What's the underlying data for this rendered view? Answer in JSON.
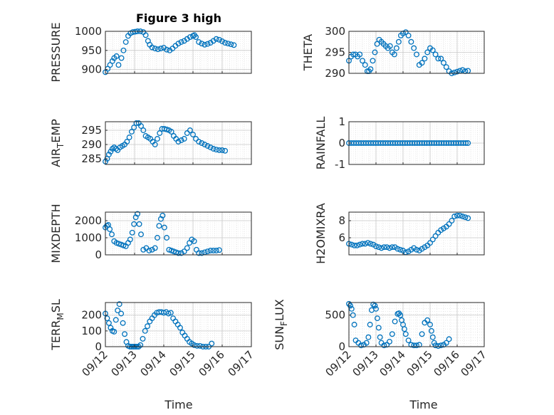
{
  "figure_title": "Figure 3 high",
  "x_time_label": "Time",
  "x_tick_labels": [
    "09/12",
    "09/13",
    "09/14",
    "09/15",
    "09/16",
    "09/17"
  ],
  "marker_color": "#0072BD",
  "chart_data": [
    {
      "type": "scatter",
      "title": "Figure 3 high",
      "ylabel": "PRESSURE",
      "ylim": [
        890,
        1000
      ],
      "yticks": [
        900,
        950,
        1000
      ],
      "xlim": [
        0,
        5
      ],
      "grid": true,
      "x": [
        0.0,
        0.08,
        0.16,
        0.24,
        0.3,
        0.38,
        0.45,
        0.55,
        0.62,
        0.7,
        0.78,
        0.86,
        0.94,
        1.02,
        1.1,
        1.2,
        1.3,
        1.38,
        1.46,
        1.52,
        1.6,
        1.7,
        1.8,
        1.9,
        2.0,
        2.1,
        2.2,
        2.3,
        2.4,
        2.5,
        2.6,
        2.7,
        2.8,
        2.9,
        3.0,
        3.05,
        3.1,
        3.2,
        3.3,
        3.4,
        3.5,
        3.6,
        3.7,
        3.8,
        3.9,
        4.0,
        4.1,
        4.2,
        4.3,
        4.4
      ],
      "y": [
        893,
        902,
        912,
        922,
        930,
        935,
        912,
        930,
        950,
        972,
        988,
        995,
        998,
        999,
        1000,
        1000,
        998,
        990,
        975,
        965,
        958,
        955,
        953,
        955,
        957,
        952,
        950,
        955,
        962,
        968,
        972,
        975,
        980,
        985,
        988,
        990,
        985,
        972,
        968,
        965,
        967,
        970,
        975,
        980,
        978,
        974,
        970,
        968,
        966,
        964
      ]
    },
    {
      "type": "scatter",
      "ylabel": "THETA",
      "ylim": [
        290,
        300
      ],
      "yticks": [
        290,
        295,
        300
      ],
      "xlim": [
        0,
        5
      ],
      "grid": true,
      "x": [
        0.0,
        0.08,
        0.16,
        0.24,
        0.32,
        0.4,
        0.5,
        0.6,
        0.68,
        0.74,
        0.8,
        0.88,
        0.96,
        1.04,
        1.12,
        1.2,
        1.28,
        1.36,
        1.44,
        1.52,
        1.6,
        1.68,
        1.76,
        1.84,
        1.92,
        2.0,
        2.1,
        2.2,
        2.3,
        2.4,
        2.5,
        2.6,
        2.7,
        2.8,
        2.9,
        3.0,
        3.1,
        3.2,
        3.3,
        3.4,
        3.5,
        3.6,
        3.7,
        3.8,
        3.9,
        4.0,
        4.1,
        4.2,
        4.3,
        4.4
      ],
      "y": [
        293,
        294,
        294.5,
        294.5,
        294,
        294.5,
        293,
        292,
        290.5,
        290.5,
        291,
        293,
        295,
        297,
        298,
        297.5,
        297,
        296.5,
        296,
        296.5,
        295,
        294.5,
        296,
        297.5,
        299,
        299.5,
        299.8,
        299,
        297.5,
        296,
        294.5,
        292,
        292.5,
        293.5,
        295,
        296,
        295.5,
        294.5,
        293.5,
        293.5,
        292.5,
        291.5,
        290.5,
        290,
        290.2,
        290.4,
        290.6,
        290.8,
        290.5,
        290.6
      ]
    },
    {
      "type": "scatter",
      "ylabel": "AIR_TEMP",
      "ylim": [
        283,
        298
      ],
      "yticks": [
        285,
        290,
        295
      ],
      "xlim": [
        0,
        5
      ],
      "grid": true,
      "x": [
        0.0,
        0.06,
        0.12,
        0.18,
        0.24,
        0.3,
        0.36,
        0.42,
        0.5,
        0.58,
        0.66,
        0.74,
        0.82,
        0.9,
        0.98,
        1.06,
        1.14,
        1.22,
        1.3,
        1.38,
        1.46,
        1.54,
        1.62,
        1.7,
        1.78,
        1.86,
        1.94,
        2.02,
        2.1,
        2.18,
        2.26,
        2.34,
        2.42,
        2.5,
        2.6,
        2.7,
        2.8,
        2.9,
        3.0,
        3.1,
        3.2,
        3.3,
        3.4,
        3.5,
        3.6,
        3.7,
        3.8,
        3.9,
        4.0,
        4.1
      ],
      "y": [
        284,
        285,
        286.5,
        287.5,
        288.5,
        289,
        288.5,
        288,
        289,
        289.5,
        290,
        291,
        292.5,
        294.5,
        296,
        297.5,
        297.5,
        296.5,
        295,
        293,
        292.5,
        292,
        291,
        290,
        292,
        294,
        295.5,
        295.5,
        295.3,
        295,
        294.5,
        293,
        292,
        291,
        291.5,
        292,
        294,
        295,
        293.5,
        292,
        291,
        290.5,
        290,
        289.5,
        289,
        288.5,
        288.2,
        288,
        288,
        287.8
      ]
    },
    {
      "type": "scatter",
      "ylabel": "RAINFALL",
      "ylim": [
        -1,
        1
      ],
      "yticks": [
        -1,
        0,
        1
      ],
      "xlim": [
        0,
        5
      ],
      "grid": true,
      "x": [
        0.0,
        0.09,
        0.18,
        0.27,
        0.36,
        0.45,
        0.54,
        0.63,
        0.72,
        0.81,
        0.9,
        0.99,
        1.08,
        1.17,
        1.26,
        1.35,
        1.44,
        1.53,
        1.62,
        1.71,
        1.8,
        1.89,
        1.98,
        2.07,
        2.16,
        2.25,
        2.34,
        2.43,
        2.52,
        2.61,
        2.7,
        2.79,
        2.88,
        2.97,
        3.06,
        3.15,
        3.24,
        3.33,
        3.42,
        3.51,
        3.6,
        3.69,
        3.78,
        3.87,
        3.96,
        4.05,
        4.14,
        4.23,
        4.32,
        4.4
      ],
      "y": [
        0,
        0,
        0,
        0,
        0,
        0,
        0,
        0,
        0,
        0,
        0,
        0,
        0,
        0,
        0,
        0,
        0,
        0,
        0,
        0,
        0,
        0,
        0,
        0,
        0,
        0,
        0,
        0,
        0,
        0,
        0,
        0,
        0,
        0,
        0,
        0,
        0,
        0,
        0,
        0,
        0,
        0,
        0,
        0,
        0,
        0,
        0,
        0,
        0,
        0
      ]
    },
    {
      "type": "scatter",
      "ylabel": "MIXDEPTH",
      "ylim": [
        0,
        2500
      ],
      "yticks": [
        0,
        1000,
        2000
      ],
      "xlim": [
        0,
        5
      ],
      "grid": true,
      "x": [
        0.0,
        0.05,
        0.1,
        0.15,
        0.22,
        0.3,
        0.38,
        0.46,
        0.54,
        0.62,
        0.7,
        0.78,
        0.85,
        0.92,
        0.98,
        1.04,
        1.1,
        1.16,
        1.22,
        1.3,
        1.4,
        1.5,
        1.6,
        1.7,
        1.78,
        1.84,
        1.9,
        1.96,
        2.02,
        2.1,
        2.18,
        2.26,
        2.34,
        2.42,
        2.5,
        2.6,
        2.7,
        2.8,
        2.88,
        2.96,
        3.04,
        3.12,
        3.2,
        3.3,
        3.4,
        3.5,
        3.6,
        3.7,
        3.8,
        3.9
      ],
      "y": [
        1600,
        1700,
        1750,
        1500,
        1200,
        800,
        700,
        650,
        600,
        550,
        500,
        700,
        900,
        1300,
        1800,
        2200,
        2400,
        1800,
        1200,
        300,
        400,
        250,
        300,
        400,
        1000,
        1700,
        2100,
        2300,
        1600,
        1000,
        300,
        250,
        200,
        150,
        100,
        100,
        200,
        400,
        700,
        900,
        800,
        300,
        100,
        100,
        150,
        200,
        250,
        250,
        250,
        280
      ]
    },
    {
      "type": "scatter",
      "ylabel": "H2OMIXRA",
      "ylim": [
        4,
        9
      ],
      "yticks": [
        6,
        8
      ],
      "xlim": [
        0,
        5
      ],
      "grid": true,
      "x": [
        0.0,
        0.1,
        0.2,
        0.3,
        0.4,
        0.5,
        0.6,
        0.7,
        0.8,
        0.9,
        1.0,
        1.1,
        1.2,
        1.3,
        1.4,
        1.5,
        1.6,
        1.7,
        1.8,
        1.9,
        2.0,
        2.1,
        2.2,
        2.3,
        2.4,
        2.5,
        2.6,
        2.7,
        2.8,
        2.9,
        3.0,
        3.1,
        3.2,
        3.3,
        3.4,
        3.5,
        3.6,
        3.7,
        3.8,
        3.9,
        4.0,
        4.1,
        4.2,
        4.3,
        4.4
      ],
      "y": [
        5.3,
        5.2,
        5.1,
        5.1,
        5.2,
        5.3,
        5.3,
        5.4,
        5.3,
        5.2,
        5.0,
        4.9,
        4.8,
        4.9,
        4.9,
        4.8,
        4.9,
        4.9,
        4.7,
        4.6,
        4.5,
        4.3,
        4.4,
        4.6,
        4.8,
        4.6,
        4.5,
        4.7,
        4.9,
        5.1,
        5.4,
        5.8,
        6.2,
        6.6,
        6.9,
        7.1,
        7.3,
        7.6,
        8.0,
        8.5,
        8.6,
        8.6,
        8.5,
        8.4,
        8.3
      ]
    },
    {
      "type": "scatter",
      "ylabel": "TERR_MSL",
      "ylim": [
        0,
        280
      ],
      "yticks": [
        0,
        100,
        200
      ],
      "xlim": [
        0,
        5
      ],
      "grid": true,
      "x": [
        0.0,
        0.06,
        0.12,
        0.18,
        0.24,
        0.3,
        0.36,
        0.42,
        0.48,
        0.54,
        0.6,
        0.66,
        0.72,
        0.78,
        0.84,
        0.9,
        0.96,
        1.02,
        1.08,
        1.14,
        1.2,
        1.28,
        1.36,
        1.44,
        1.52,
        1.6,
        1.68,
        1.76,
        1.84,
        1.92,
        2.0,
        2.08,
        2.16,
        2.24,
        2.32,
        2.4,
        2.48,
        2.56,
        2.64,
        2.72,
        2.8,
        2.88,
        2.96,
        3.04,
        3.14,
        3.24,
        3.34,
        3.44,
        3.54,
        3.64
      ],
      "y": [
        210,
        180,
        150,
        120,
        100,
        95,
        170,
        230,
        270,
        210,
        150,
        80,
        30,
        5,
        0,
        0,
        0,
        0,
        0,
        0,
        10,
        50,
        100,
        130,
        160,
        180,
        200,
        215,
        220,
        220,
        215,
        220,
        210,
        215,
        180,
        160,
        140,
        120,
        90,
        70,
        50,
        30,
        20,
        10,
        5,
        5,
        0,
        0,
        0,
        20
      ]
    },
    {
      "type": "scatter",
      "ylabel": "SUN_FLUX",
      "ylim": [
        0,
        700
      ],
      "yticks": [
        0,
        500
      ],
      "xlim": [
        0,
        5
      ],
      "grid": true,
      "x": [
        0.0,
        0.05,
        0.1,
        0.15,
        0.2,
        0.25,
        0.35,
        0.45,
        0.55,
        0.65,
        0.72,
        0.78,
        0.84,
        0.9,
        0.96,
        1.0,
        1.05,
        1.1,
        1.15,
        1.2,
        1.3,
        1.4,
        1.5,
        1.6,
        1.7,
        1.8,
        1.85,
        1.9,
        1.95,
        2.0,
        2.05,
        2.1,
        2.2,
        2.3,
        2.4,
        2.5,
        2.6,
        2.7,
        2.8,
        2.9,
        3.0,
        3.05,
        3.1,
        3.15,
        3.2,
        3.3,
        3.4,
        3.5,
        3.6,
        3.7
      ],
      "y": [
        680,
        650,
        600,
        500,
        350,
        100,
        60,
        20,
        30,
        60,
        150,
        350,
        580,
        670,
        650,
        600,
        450,
        300,
        150,
        60,
        20,
        30,
        80,
        200,
        400,
        520,
        530,
        500,
        420,
        350,
        280,
        200,
        100,
        30,
        20,
        20,
        30,
        200,
        380,
        420,
        350,
        250,
        150,
        60,
        20,
        10,
        20,
        30,
        60,
        120
      ]
    }
  ]
}
